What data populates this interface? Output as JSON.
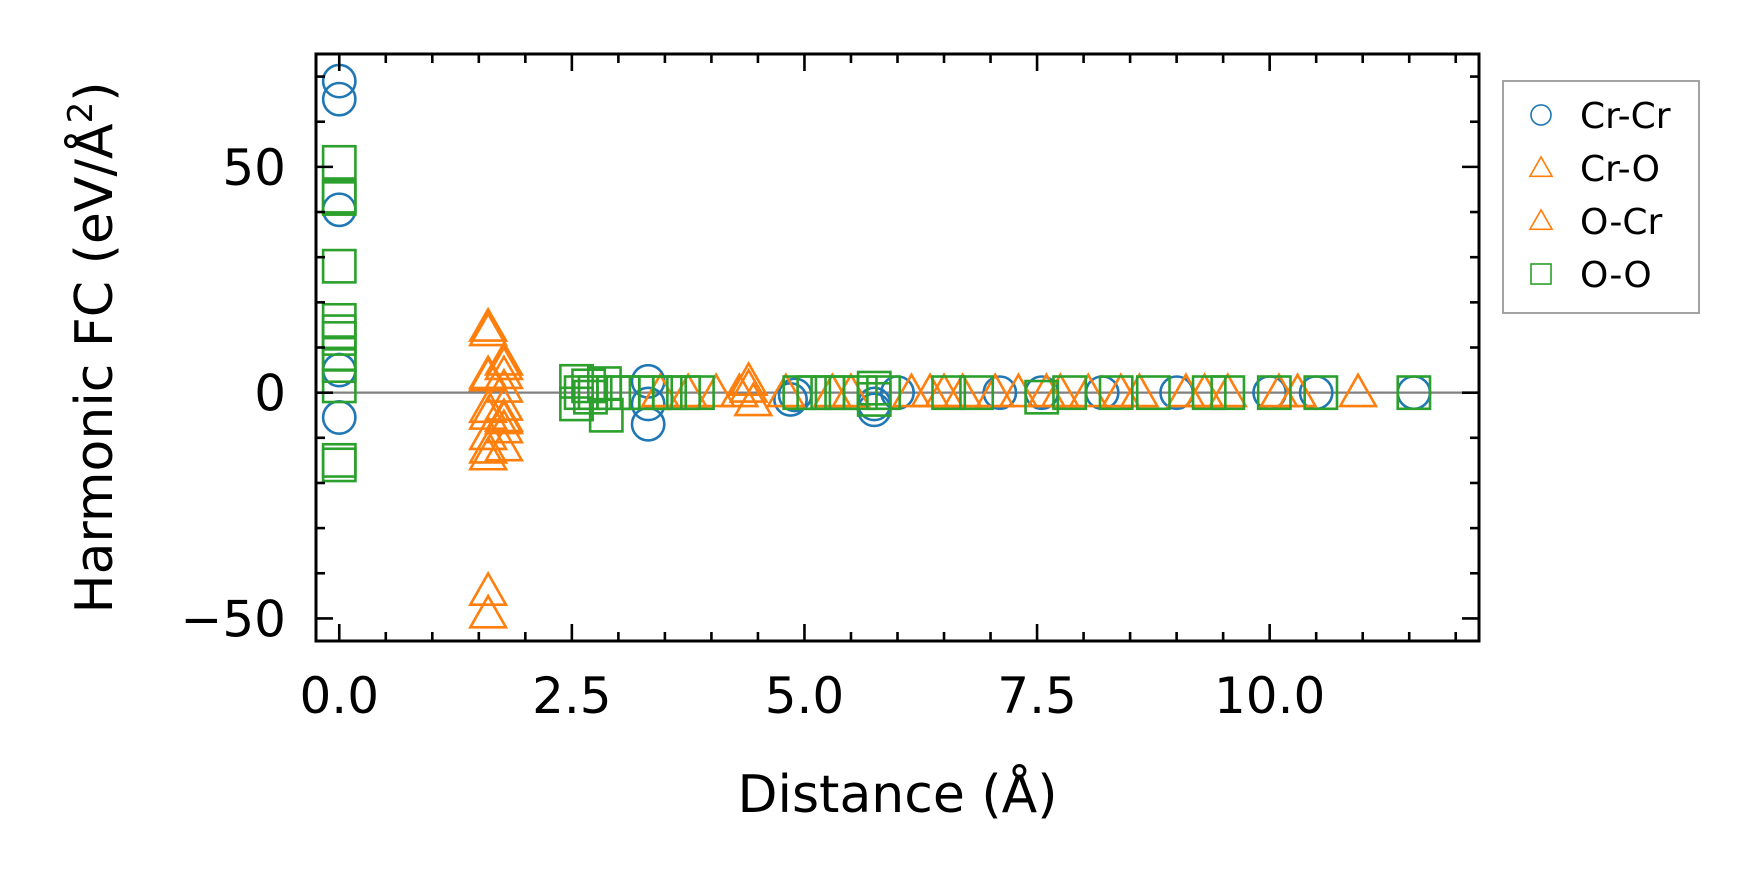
{
  "chart_data": {
    "type": "scatter",
    "xlabel": "Distance (Å)",
    "ylabel_main": "Harmonic FC (eV/Å",
    "ylabel_sup": "2",
    "ylabel_close": ")",
    "xlim": [
      -0.25,
      12.25
    ],
    "ylim": [
      -55,
      75
    ],
    "x_ticks": [
      0.0,
      2.5,
      5.0,
      7.5,
      10.0
    ],
    "x_tick_labels": [
      "0.0",
      "2.5",
      "5.0",
      "7.5",
      "10.0"
    ],
    "y_ticks": [
      -50,
      0,
      50
    ],
    "y_tick_labels": [
      "−50",
      "0",
      "50"
    ],
    "x_minor_step": 0.5,
    "y_minor_step": 10,
    "zero_line": true,
    "grid": false,
    "legend_position": "outside-right",
    "series": [
      {
        "name": "Cr-Cr",
        "marker": "circle",
        "color": "#1f77b4",
        "points": [
          [
            0.0,
            69
          ],
          [
            0.0,
            65
          ],
          [
            0.0,
            40.5
          ],
          [
            0.0,
            5
          ],
          [
            0.0,
            -5.5
          ],
          [
            3.32,
            2.5
          ],
          [
            3.32,
            -2.5
          ],
          [
            3.32,
            -7
          ],
          [
            4.85,
            -1.5
          ],
          [
            4.9,
            -0.5
          ],
          [
            5.75,
            -2.5
          ],
          [
            5.75,
            -3.8
          ],
          [
            6.0,
            0
          ],
          [
            7.1,
            0
          ],
          [
            7.55,
            0
          ],
          [
            8.2,
            0
          ],
          [
            9.0,
            0
          ],
          [
            10.0,
            0
          ],
          [
            10.5,
            0
          ],
          [
            11.55,
            0
          ]
        ]
      },
      {
        "name": "Cr-O",
        "marker": "triangle",
        "color": "#ff7f0e",
        "points": [
          [
            1.6,
            14.5
          ],
          [
            1.6,
            13.5
          ],
          [
            1.6,
            3.5
          ],
          [
            1.6,
            -3.5
          ],
          [
            1.6,
            -5
          ],
          [
            1.6,
            -9.5
          ],
          [
            1.6,
            -12.5
          ],
          [
            1.6,
            -14
          ],
          [
            1.6,
            -44
          ],
          [
            1.6,
            -49
          ],
          [
            1.77,
            6
          ],
          [
            1.77,
            4
          ],
          [
            1.77,
            1
          ],
          [
            1.77,
            -3
          ],
          [
            1.77,
            -5.5
          ],
          [
            1.77,
            -8
          ],
          [
            1.77,
            -12
          ],
          [
            3.75,
            0
          ],
          [
            4.05,
            0
          ],
          [
            4.4,
            2.5
          ],
          [
            4.45,
            -2
          ],
          [
            4.8,
            0
          ],
          [
            5.3,
            0
          ],
          [
            5.5,
            0
          ],
          [
            6.15,
            0
          ],
          [
            6.35,
            0
          ],
          [
            6.7,
            0
          ],
          [
            7.05,
            0
          ],
          [
            7.3,
            0
          ],
          [
            7.75,
            0
          ],
          [
            8.05,
            0
          ],
          [
            8.6,
            0
          ],
          [
            9.1,
            0
          ],
          [
            9.55,
            0
          ],
          [
            10.1,
            0
          ],
          [
            10.3,
            0
          ],
          [
            10.95,
            0
          ]
        ]
      },
      {
        "name": "O-Cr",
        "marker": "triangle",
        "color": "#ff7f0e",
        "points": [
          [
            1.6,
            4
          ],
          [
            1.77,
            7
          ],
          [
            1.77,
            -6
          ],
          [
            3.45,
            0
          ],
          [
            4.3,
            0
          ],
          [
            4.4,
            1
          ],
          [
            6.5,
            0
          ],
          [
            7.6,
            0
          ],
          [
            8.4,
            0
          ],
          [
            9.3,
            0
          ]
        ]
      },
      {
        "name": "O-O",
        "marker": "square",
        "color": "#2ca02c",
        "points": [
          [
            0.0,
            51
          ],
          [
            0.0,
            43.5
          ],
          [
            0.0,
            43
          ],
          [
            0.0,
            28
          ],
          [
            0.0,
            16
          ],
          [
            0.0,
            13.5
          ],
          [
            0.0,
            12
          ],
          [
            0.0,
            8.5
          ],
          [
            0.0,
            6
          ],
          [
            0.0,
            1.5
          ],
          [
            0.0,
            -15
          ],
          [
            0.0,
            -16
          ],
          [
            2.55,
            2.5
          ],
          [
            2.55,
            -2.5
          ],
          [
            2.6,
            0
          ],
          [
            2.68,
            1.5
          ],
          [
            2.7,
            -1
          ],
          [
            2.75,
            0
          ],
          [
            2.85,
            2
          ],
          [
            2.87,
            -5
          ],
          [
            2.95,
            0
          ],
          [
            3.05,
            0
          ],
          [
            3.2,
            0
          ],
          [
            3.4,
            0
          ],
          [
            3.55,
            0
          ],
          [
            3.7,
            0
          ],
          [
            3.85,
            0
          ],
          [
            4.95,
            0
          ],
          [
            5.1,
            0
          ],
          [
            5.25,
            0
          ],
          [
            5.4,
            0
          ],
          [
            5.6,
            0
          ],
          [
            5.75,
            1
          ],
          [
            5.75,
            -1.5
          ],
          [
            5.85,
            0
          ],
          [
            6.55,
            0
          ],
          [
            6.85,
            0
          ],
          [
            7.55,
            -1
          ],
          [
            7.85,
            0
          ],
          [
            8.35,
            0
          ],
          [
            8.75,
            0
          ],
          [
            9.35,
            0
          ],
          [
            9.55,
            0
          ],
          [
            10.05,
            0
          ],
          [
            10.55,
            0
          ],
          [
            11.55,
            0
          ]
        ]
      }
    ]
  }
}
